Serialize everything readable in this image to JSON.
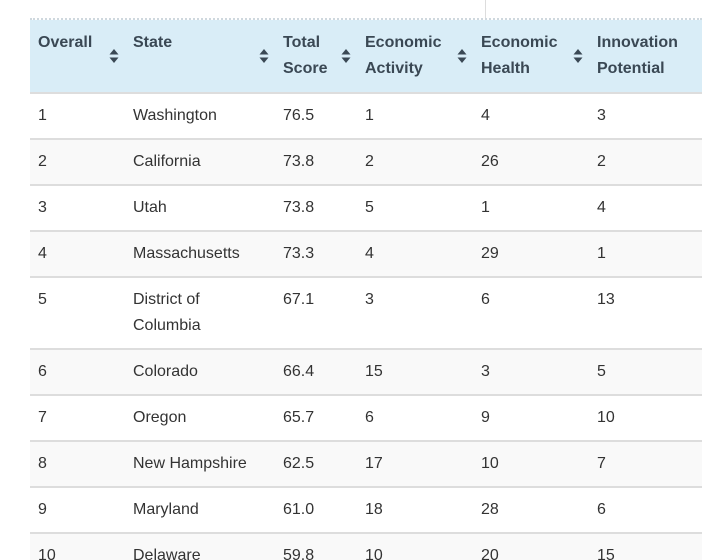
{
  "table": {
    "headers": [
      "Overall",
      "State",
      "Total Score",
      "Economic Activity",
      "Economic Health",
      "Innovation Potential"
    ],
    "rows": [
      [
        "1",
        "Washington",
        "76.5",
        "1",
        "4",
        "3"
      ],
      [
        "2",
        "California",
        "73.8",
        "2",
        "26",
        "2"
      ],
      [
        "3",
        "Utah",
        "73.8",
        "5",
        "1",
        "4"
      ],
      [
        "4",
        "Massachusetts",
        "73.3",
        "4",
        "29",
        "1"
      ],
      [
        "5",
        "District of Columbia",
        "67.1",
        "3",
        "6",
        "13"
      ],
      [
        "6",
        "Colorado",
        "66.4",
        "15",
        "3",
        "5"
      ],
      [
        "7",
        "Oregon",
        "65.7",
        "6",
        "9",
        "10"
      ],
      [
        "8",
        "New Hampshire",
        "62.5",
        "17",
        "10",
        "7"
      ],
      [
        "9",
        "Maryland",
        "61.0",
        "18",
        "28",
        "6"
      ],
      [
        "10",
        "Delaware",
        "59.8",
        "10",
        "20",
        "15"
      ]
    ]
  }
}
